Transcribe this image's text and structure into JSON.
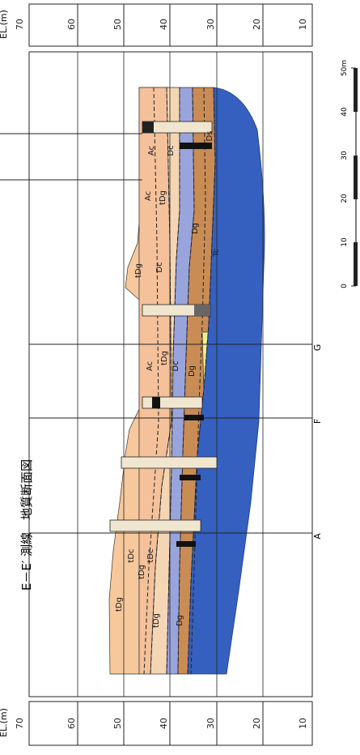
{
  "title": "E－E′ 測線　地質断面図",
  "elevation_header": "EL.(m)",
  "elevation_ticks_top": [
    "70",
    "60",
    "50",
    "40",
    "30",
    "20",
    "10"
  ],
  "elevation_ticks_bottom": [
    "70",
    "60",
    "50",
    "40",
    "30",
    "20",
    "10"
  ],
  "section_markers": [
    "A",
    "F",
    "G"
  ],
  "scale_bar": {
    "ticks": [
      "0",
      "10",
      "20",
      "30",
      "40",
      "50m"
    ]
  },
  "units": [
    {
      "code": "tDg",
      "color": "#f6c89c"
    },
    {
      "code": "tDc",
      "color": "#f4d6b4"
    },
    {
      "code": "Ac",
      "color": "#8fd2e0"
    },
    {
      "code": "Dc",
      "color": "#9aa4dc"
    },
    {
      "code": "Dg",
      "color": "#c98c55"
    },
    {
      "code": "Ds",
      "color": "#f3ee8a"
    },
    {
      "code": "Tc",
      "color": "#3560bf"
    }
  ],
  "layer_labels": [
    "tDg",
    "tDc",
    "tDg",
    "tDc",
    "tDg",
    "Dg",
    "Tc",
    "Ac",
    "tDg",
    "Dc",
    "Dg",
    "Ac",
    "tDg",
    "Dc",
    "Dg",
    "tDg",
    "Ac",
    "Ds",
    "Dc"
  ]
}
